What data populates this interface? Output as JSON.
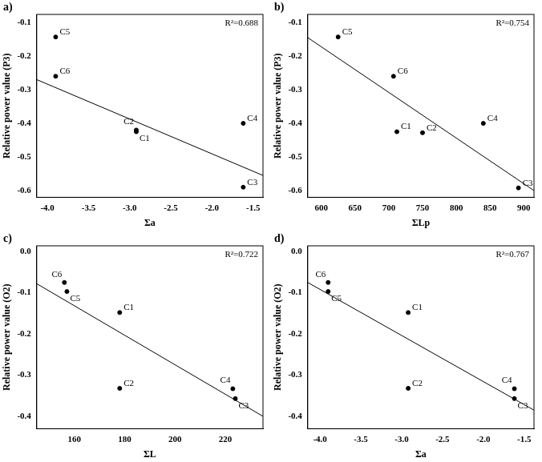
{
  "chart_data": [
    {
      "type": "scatter",
      "title": "a)",
      "x_label": "Σa",
      "y_label": "Relative power value (P3)",
      "annotation": "R²=0.688",
      "color": "#000000",
      "marker": "circle",
      "grid": false,
      "x": [
        -3.9,
        -3.9,
        -2.92,
        -2.92,
        -1.62,
        -1.62
      ],
      "values": [
        -0.143,
        -0.26,
        -0.42,
        -0.425,
        -0.4,
        -0.59
      ],
      "point_labels": [
        "C5",
        "C6",
        "C2",
        "C1",
        "C4",
        "C3"
      ],
      "trend_line": {
        "x": [
          -4.13,
          -1.38
        ],
        "values": [
          -0.27,
          -0.555
        ]
      },
      "xlim": [
        -4.13,
        -1.38
      ],
      "xticks": [
        {
          "value": -4,
          "label": "-4.0"
        },
        -3.5,
        {
          "value": -3,
          "label": "-3.0"
        },
        -2.5,
        {
          "value": -2,
          "label": "-2.0"
        },
        -1.5
      ],
      "ylim": [
        -0.62,
        -0.076
      ],
      "yticks": [
        -0.1,
        -0.2,
        -0.3,
        -0.4,
        -0.5,
        -0.6
      ]
    },
    {
      "type": "scatter",
      "title": "b)",
      "x_label": "ΣLp",
      "y_label": "Relative power value (P3)",
      "annotation": "R²=0.754",
      "color": "#000000",
      "marker": "circle",
      "grid": false,
      "x": [
        625,
        707,
        712,
        750,
        840,
        892
      ],
      "values": [
        -0.143,
        -0.26,
        -0.425,
        -0.428,
        -0.4,
        -0.592
      ],
      "point_labels": [
        "C5",
        "C6",
        "C1",
        "C2",
        "C4",
        "C3"
      ],
      "trend_line": {
        "x": [
          580,
          915
        ],
        "values": [
          -0.145,
          -0.6
        ]
      },
      "xlim": [
        580,
        915
      ],
      "xticks": [
        600,
        650,
        700,
        750,
        800,
        850,
        900
      ],
      "ylim": [
        -0.62,
        -0.076
      ],
      "yticks": [
        -0.1,
        -0.2,
        -0.3,
        -0.4,
        -0.5,
        -0.6
      ]
    },
    {
      "type": "scatter",
      "title": "c)",
      "x_label": "ΣL",
      "y_label": "Relative power value (O2)",
      "annotation": "R²=0.722",
      "color": "#000000",
      "marker": "circle",
      "grid": false,
      "x": [
        156,
        157,
        178,
        178,
        223,
        224
      ],
      "values": [
        -0.075,
        -0.097,
        -0.148,
        -0.332,
        -0.333,
        -0.357
      ],
      "point_labels": [
        "C6",
        "C5",
        "C1",
        "C2",
        "C4",
        "C3"
      ],
      "trend_line": {
        "x": [
          145,
          235
        ],
        "values": [
          -0.078,
          -0.4
        ]
      },
      "xlim": [
        145,
        235
      ],
      "xticks": [
        160,
        180,
        200,
        220
      ],
      "ylim": [
        -0.43,
        0.014
      ],
      "yticks": [
        {
          "value": 0,
          "label": "0.0"
        },
        -0.1,
        -0.2,
        -0.3,
        -0.4
      ]
    },
    {
      "type": "scatter",
      "title": "d)",
      "x_label": "Σa",
      "y_label": "Relative power value (O2)",
      "annotation": "R²=0.767",
      "color": "#000000",
      "marker": "circle",
      "grid": false,
      "x": [
        -3.9,
        -3.9,
        -2.92,
        -2.92,
        -1.62,
        -1.62
      ],
      "values": [
        -0.075,
        -0.097,
        -0.148,
        -0.332,
        -0.333,
        -0.357
      ],
      "point_labels": [
        "C6",
        "C5",
        "C1",
        "C2",
        "C4",
        "C3"
      ],
      "trend_line": {
        "x": [
          -4.15,
          -1.38
        ],
        "values": [
          -0.075,
          -0.385
        ]
      },
      "xlim": [
        -4.15,
        -1.38
      ],
      "xticks": [
        {
          "value": -4,
          "label": "-4.0"
        },
        -3.5,
        {
          "value": -3,
          "label": "-3.0"
        },
        -2.5,
        {
          "value": -2,
          "label": "-2.0"
        },
        -1.5
      ],
      "ylim": [
        -0.43,
        0.014
      ],
      "yticks": [
        {
          "value": 0,
          "label": "0.0"
        },
        -0.1,
        -0.2,
        -0.3,
        -0.4
      ]
    }
  ]
}
